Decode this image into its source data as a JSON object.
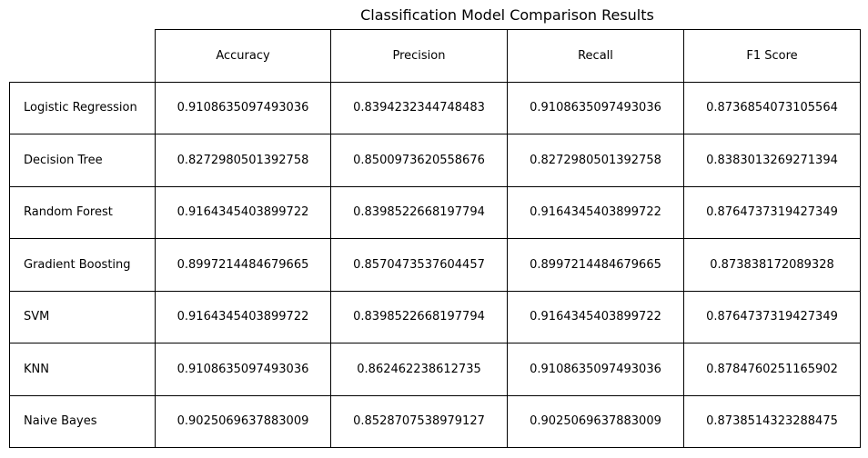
{
  "chart_data": {
    "type": "table",
    "title": "Classification Model Comparison Results",
    "columns": [
      "Accuracy",
      "Precision",
      "Recall",
      "F1 Score"
    ],
    "rows": [
      {
        "label": "Logistic Regression",
        "values": [
          "0.9108635097493036",
          "0.8394232344748483",
          "0.9108635097493036",
          "0.8736854073105564"
        ]
      },
      {
        "label": "Decision Tree",
        "values": [
          "0.8272980501392758",
          "0.8500973620558676",
          "0.8272980501392758",
          "0.8383013269271394"
        ]
      },
      {
        "label": "Random Forest",
        "values": [
          "0.9164345403899722",
          "0.8398522668197794",
          "0.9164345403899722",
          "0.8764737319427349"
        ]
      },
      {
        "label": "Gradient Boosting",
        "values": [
          "0.8997214484679665",
          "0.8570473537604457",
          "0.8997214484679665",
          "0.873838172089328"
        ]
      },
      {
        "label": "SVM",
        "values": [
          "0.9164345403899722",
          "0.8398522668197794",
          "0.9164345403899722",
          "0.8764737319427349"
        ]
      },
      {
        "label": "KNN",
        "values": [
          "0.9108635097493036",
          "0.862462238612735",
          "0.9108635097493036",
          "0.8784760251165902"
        ]
      },
      {
        "label": "Naive Bayes",
        "values": [
          "0.9025069637883009",
          "0.8528707538979127",
          "0.9025069637883009",
          "0.8738514323288475"
        ]
      }
    ]
  }
}
